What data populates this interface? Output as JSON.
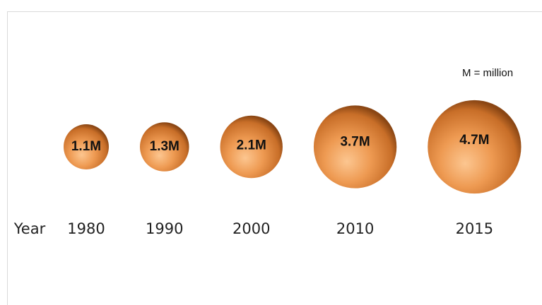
{
  "chart_data": {
    "type": "bubble",
    "annotation": "M = million",
    "x_label": "Year",
    "categories": [
      "1980",
      "1990",
      "2000",
      "2010",
      "2015"
    ],
    "values": [
      1.1,
      1.3,
      2.1,
      3.7,
      4.7
    ],
    "value_labels": [
      "1.1M",
      "1.3M",
      "2.1M",
      "3.7M",
      "4.7M"
    ],
    "color": "#e8904a"
  }
}
